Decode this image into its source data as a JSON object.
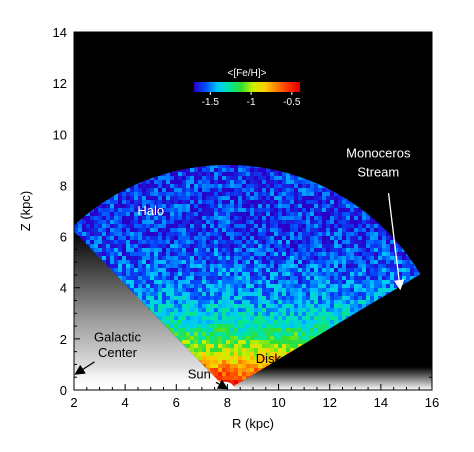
{
  "chart_data": {
    "type": "heatmap",
    "title": "",
    "xlabel": "R (kpc)",
    "ylabel": "Z (kpc)",
    "xlim": [
      2,
      16
    ],
    "ylim": [
      0,
      14
    ],
    "x_ticks": [
      "2",
      "4",
      "6",
      "8",
      "10",
      "12",
      "14",
      "16"
    ],
    "y_ticks": [
      "0",
      "2",
      "4",
      "6",
      "8",
      "10",
      "12",
      "14"
    ],
    "x_tick_values": [
      2,
      4,
      6,
      8,
      10,
      12,
      14,
      16
    ],
    "y_tick_values": [
      0,
      2,
      4,
      6,
      8,
      10,
      12,
      14
    ],
    "background_color": "#000000",
    "colorbar": {
      "label": "<[Fe/H]>",
      "tick_labels": [
        "-1.5",
        "-1",
        "-0.5"
      ],
      "tick_values": [
        -1.5,
        -1.0,
        -0.5
      ],
      "range": [
        -1.7,
        -0.4
      ],
      "colors": [
        "#2a00c8",
        "#0050ff",
        "#00c8ff",
        "#00e6a0",
        "#30e030",
        "#c8f000",
        "#ffd000",
        "#ff8000",
        "#ff3000",
        "#e00000"
      ]
    },
    "metallicity_profile": {
      "z_kpc": [
        0.0,
        0.4,
        0.8,
        1.2,
        1.6,
        2.0,
        2.4,
        2.8,
        3.2,
        3.6,
        4.0,
        5.0,
        6.0,
        9.0
      ],
      "feh": [
        -0.45,
        -0.55,
        -0.7,
        -0.85,
        -1.0,
        -1.15,
        -1.25,
        -1.35,
        -1.4,
        -1.45,
        -1.5,
        -1.55,
        -1.6,
        -1.6
      ]
    },
    "survey_region": {
      "apex_r": 8.0,
      "apex_z": 0.0,
      "max_distance": 8.8,
      "edge_point_left": [
        2.0,
        6.2
      ],
      "edge_point_right": [
        16.0,
        4.8
      ]
    },
    "annotations": [
      {
        "text": "Halo",
        "x": 5.0,
        "y": 6.85,
        "color": "#ffffff"
      },
      {
        "text": "Monoceros",
        "x": 13.9,
        "y": 9.1,
        "color": "#ffffff"
      },
      {
        "text": "Stream",
        "x": 13.9,
        "y": 8.35,
        "color": "#ffffff"
      },
      {
        "text": "Disk",
        "x": 9.6,
        "y": 1.05,
        "color": "#000000"
      },
      {
        "text": "Galactic",
        "x": 3.7,
        "y": 1.9,
        "color": "#000000"
      },
      {
        "text": "Center",
        "x": 3.7,
        "y": 1.3,
        "color": "#000000"
      },
      {
        "text": "Sun",
        "x": 6.9,
        "y": 0.45,
        "color": "#000000"
      }
    ],
    "arrows": [
      {
        "name": "monoceros-arrow",
        "from": [
          14.3,
          7.7
        ],
        "to": [
          14.75,
          4.0
        ],
        "color": "#ffffff"
      },
      {
        "name": "galactic-center-arrow",
        "from": [
          2.8,
          1.1
        ],
        "to": [
          2.1,
          0.65
        ],
        "color": "#000000"
      },
      {
        "name": "sun-arrow",
        "from": [
          7.55,
          0.3
        ],
        "to": [
          7.95,
          0.08
        ],
        "color": "#000000"
      }
    ]
  }
}
